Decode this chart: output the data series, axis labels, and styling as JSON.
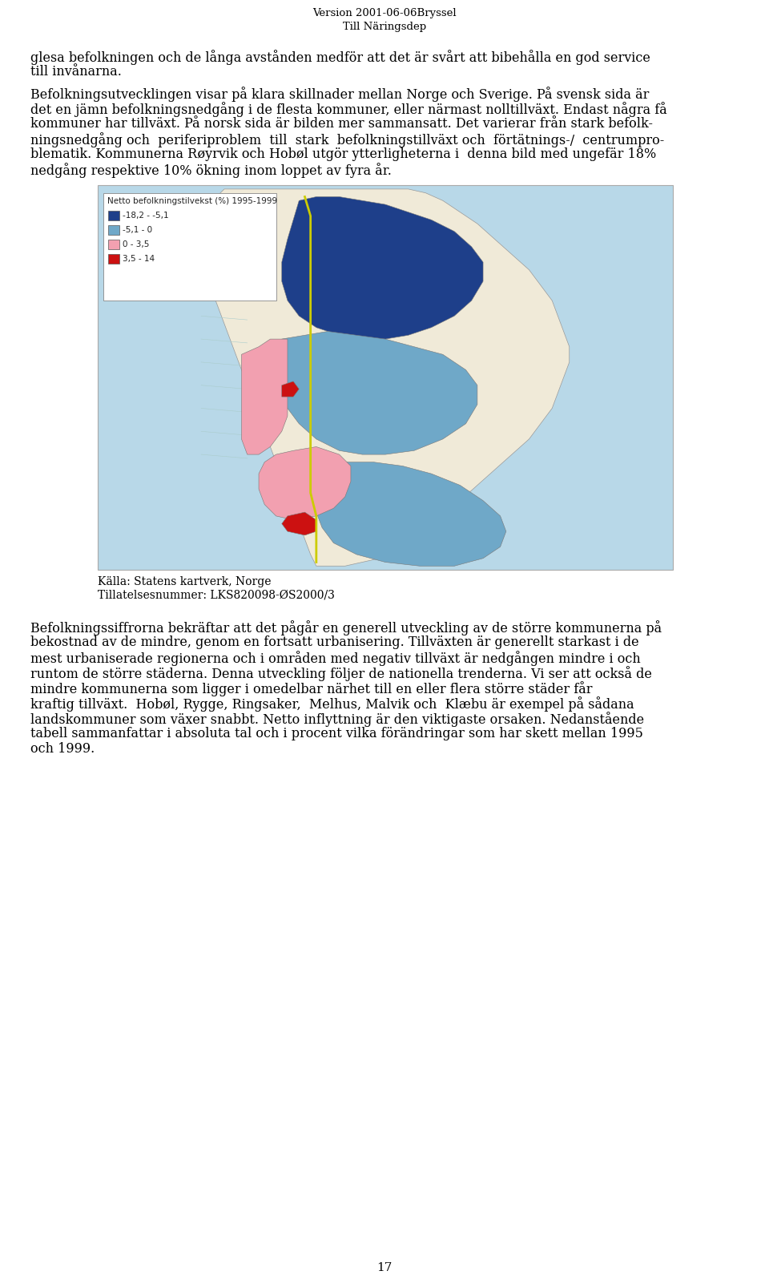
{
  "header_line1": "Version 2001-06-06Bryssel",
  "header_line2": "Till Näringsdep",
  "para1": "glesa befolkningen och de långa avstånden medför att det är svårt att bibehålla en god service till invånarna.",
  "para2_lines": [
    "Befolkningsutvecklingen visar på klara skillnader mellan Norge och Sverige. På svensk sida är",
    "det en jämn befolkningsnedgång i de flesta kommuner, eller närmast nolltillväxt. Endast några få",
    "kommuner har tillväxt. På norsk sida är bilden mer sammansatt. Det varierar från stark befolkningsnedgång och periferiproblem till stark befolkningstillväxt och förtätnings-/ centrumprob-",
    "lematik. Kommunerna Røyrvik och Hobøl utgör ytterligheterna i  denna bild med ungefär 18%",
    "nedgång respektive 10% ökning inom loppet av fyra år."
  ],
  "para3_lines": [
    "Befolkningssiffrorna bekräftar att det pågår en generell utveckling av de större kommunerna på",
    "bekostnad av de mindre, genom en fortsatt urbanisering. Tillväxten är generellt starkast i de",
    "mest urbaniserade regionerna och i områden med negativ tillväxt är nedgången mindre i och",
    "runtom de större städerna. Denna utveckling följer de nationella trenderna. Vi ser att också de",
    "mindre kommunerna som ligger i omedelbar närhet till en eller flera större städer får",
    "kraftig tillväxt.  Hobøl, Rygge, Ringsaker,  Melhus, Malvik och  Klæbu är exempel på sådana",
    "landskommuner som växer snabbt. Netto inflyttning är den viktigaste orsaken. Nedanstående",
    "tabell sammanfattar i absoluta tal och i procent vilka förändringar som har skett mellan 1995",
    "och 1999."
  ],
  "caption_line1": "Källa: Statens kartverk, Norge",
  "caption_line2": "Tillatelsesnummer: LKS820098-ØS2000/3",
  "page_number": "17",
  "background_color": "#ffffff",
  "text_color": "#000000",
  "dark_blue": "#1e3f8a",
  "light_blue": "#6fa8c8",
  "pink": "#f2a0b0",
  "red": "#cc1111",
  "sea_color": "#b8d8e8",
  "land_color": "#f0ead8",
  "sweden_color": "#f0ead8",
  "legend_title": "Netto befolkningstilvekst (%) 1995-1999",
  "legend_entries": [
    [
      "-18,2 - -5,1"
    ],
    [
      "-5,1 - 0"
    ],
    [
      "0 - 3,5"
    ],
    [
      "3,5 - 14"
    ]
  ]
}
